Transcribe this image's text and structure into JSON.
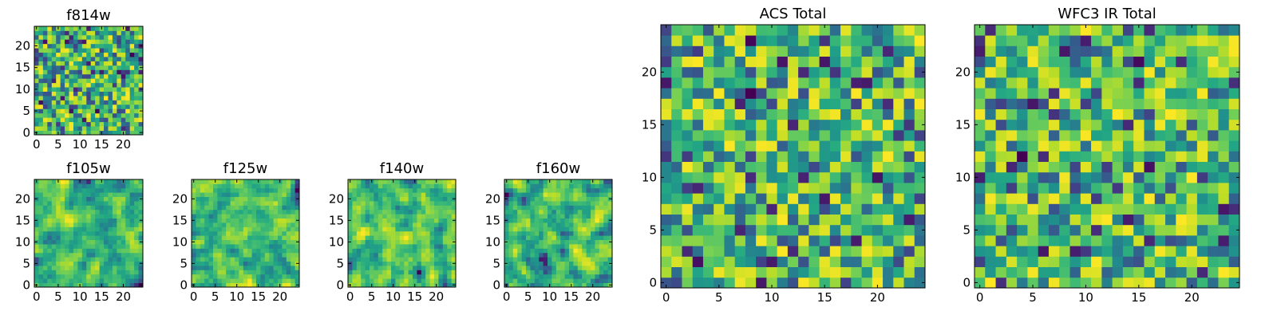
{
  "chart_data": [
    {
      "type": "heatmap",
      "title": "f814w",
      "grid_size": 25,
      "xticks": [
        "0",
        "5",
        "10",
        "15",
        "20"
      ],
      "yticks": [
        "0",
        "5",
        "10",
        "15",
        "20"
      ],
      "seed": 11,
      "colormap": "viridis",
      "smooth": false,
      "values": "pseudo-random pixel noise, values 0-1"
    },
    {
      "type": "heatmap",
      "title": "ACS Total",
      "grid_size": 25,
      "xticks": [
        "0",
        "5",
        "10",
        "15",
        "20"
      ],
      "yticks": [
        "0",
        "5",
        "10",
        "15",
        "20"
      ],
      "seed": 23,
      "colormap": "viridis",
      "smooth": false,
      "values": "pseudo-random pixel noise, values 0-1"
    },
    {
      "type": "heatmap",
      "title": "WFC3 IR Total",
      "grid_size": 25,
      "xticks": [
        "0",
        "5",
        "10",
        "15",
        "20"
      ],
      "yticks": [
        "0",
        "5",
        "10",
        "15",
        "20"
      ],
      "seed": 37,
      "colormap": "viridis",
      "smooth": false,
      "values": "pseudo-random pixel noise, values 0-1"
    },
    {
      "type": "heatmap",
      "title": "f105w",
      "grid_size": 25,
      "xticks": [
        "0",
        "5",
        "10",
        "15",
        "20"
      ],
      "yticks": [
        "0",
        "5",
        "10",
        "15",
        "20"
      ],
      "seed": 41,
      "colormap": "viridis",
      "smooth": true,
      "values": "pseudo-random pixel noise, values 0-1"
    },
    {
      "type": "heatmap",
      "title": "f125w",
      "grid_size": 25,
      "xticks": [
        "0",
        "5",
        "10",
        "15",
        "20"
      ],
      "yticks": [
        "0",
        "5",
        "10",
        "15",
        "20"
      ],
      "seed": 53,
      "colormap": "viridis",
      "smooth": true,
      "values": "pseudo-random pixel noise, values 0-1"
    },
    {
      "type": "heatmap",
      "title": "f140w",
      "grid_size": 25,
      "xticks": [
        "0",
        "5",
        "10",
        "15",
        "20"
      ],
      "yticks": [
        "0",
        "5",
        "10",
        "15",
        "20"
      ],
      "seed": 67,
      "colormap": "viridis",
      "smooth": true,
      "values": "pseudo-random pixel noise, values 0-1"
    },
    {
      "type": "heatmap",
      "title": "f160w",
      "grid_size": 25,
      "xticks": [
        "0",
        "5",
        "10",
        "15",
        "20"
      ],
      "yticks": [
        "0",
        "5",
        "10",
        "15",
        "20"
      ],
      "seed": 79,
      "colormap": "viridis",
      "smooth": true,
      "values": "pseudo-random pixel noise, values 0-1"
    }
  ]
}
